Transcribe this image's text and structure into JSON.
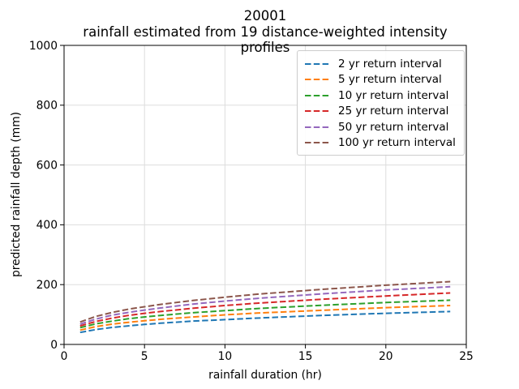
{
  "chart_data": {
    "type": "line",
    "title": "20001",
    "subtitle": "rainfall estimated from 19 distance-weighted intensity profiles",
    "xlabel": "rainfall duration (hr)",
    "ylabel": "predicted rainfall depth (mm)",
    "xlim": [
      0,
      25
    ],
    "ylim": [
      0,
      1000
    ],
    "xticks": [
      0,
      5,
      10,
      15,
      20,
      25
    ],
    "yticks": [
      0,
      200,
      400,
      600,
      800,
      1000
    ],
    "grid": true,
    "grid_color": "#dddddd",
    "spine_color": "#000000",
    "line_style": "dashed",
    "legend_position": "upper right",
    "x": [
      1,
      2,
      3,
      4,
      5,
      6,
      8,
      10,
      12,
      16,
      20,
      24
    ],
    "series": [
      {
        "name": "2 yr return interval",
        "color": "#1f77b4",
        "values": [
          40,
          50,
          57,
          62,
          67,
          71,
          78,
          83,
          88,
          97,
          104,
          110
        ]
      },
      {
        "name": "5 yr return interval",
        "color": "#ff7f0e",
        "values": [
          48,
          60,
          68,
          74,
          79,
          84,
          92,
          99,
          105,
          114,
          123,
          130
        ]
      },
      {
        "name": "10 yr return interval",
        "color": "#2ca02c",
        "values": [
          56,
          69,
          78,
          86,
          92,
          97,
          106,
          113,
          120,
          131,
          140,
          148
        ]
      },
      {
        "name": "25 yr return interval",
        "color": "#d62728",
        "values": [
          62,
          77,
          88,
          97,
          104,
          110,
          121,
          130,
          138,
          151,
          162,
          172
        ]
      },
      {
        "name": "50 yr return interval",
        "color": "#9467bd",
        "values": [
          68,
          85,
          98,
          107,
          115,
          122,
          135,
          145,
          154,
          169,
          182,
          193
        ]
      },
      {
        "name": "100 yr return interval",
        "color": "#8c564b",
        "values": [
          75,
          94,
          107,
          118,
          126,
          134,
          147,
          158,
          168,
          184,
          198,
          210
        ]
      }
    ]
  }
}
